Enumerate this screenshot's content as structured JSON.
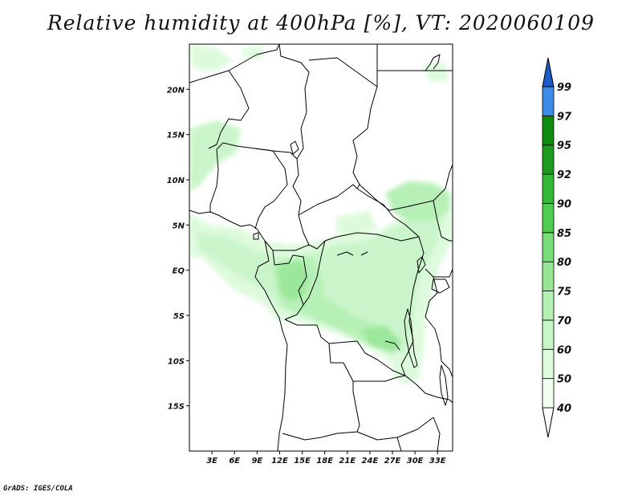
{
  "title": "Relative humidity at 400hPa [%], VT: 2020060109",
  "credit": "GrADS: IGES/COLA",
  "map": {
    "lon_range": [
      0,
      35
    ],
    "lat_range": [
      -20,
      25
    ],
    "lat_ticks": [
      {
        "value": 20,
        "label": "20N"
      },
      {
        "value": 15,
        "label": "15N"
      },
      {
        "value": 10,
        "label": "10N"
      },
      {
        "value": 5,
        "label": "5N"
      },
      {
        "value": 0,
        "label": "EQ"
      },
      {
        "value": -5,
        "label": "5S"
      },
      {
        "value": -10,
        "label": "10S"
      },
      {
        "value": -15,
        "label": "15S"
      }
    ],
    "lon_ticks": [
      {
        "value": 3,
        "label": "3E"
      },
      {
        "value": 6,
        "label": "6E"
      },
      {
        "value": 9,
        "label": "9E"
      },
      {
        "value": 12,
        "label": "12E"
      },
      {
        "value": 15,
        "label": "15E"
      },
      {
        "value": 18,
        "label": "18E"
      },
      {
        "value": 21,
        "label": "21E"
      },
      {
        "value": 24,
        "label": "24E"
      },
      {
        "value": 27,
        "label": "27E"
      },
      {
        "value": 30,
        "label": "30E"
      },
      {
        "value": 33,
        "label": "33E"
      }
    ]
  },
  "colorbar": {
    "levels": [
      40,
      50,
      60,
      70,
      75,
      80,
      85,
      90,
      92,
      95,
      97,
      99
    ],
    "colors": [
      "#f0fff0",
      "#dcfadc",
      "#c8f5c8",
      "#b4f0b4",
      "#96e696",
      "#78dc78",
      "#50cd50",
      "#37b937",
      "#1e9b1e",
      "#0f8c0f",
      "#3c8ce6",
      "#1e6edc",
      "#1e5ac8"
    ]
  }
}
